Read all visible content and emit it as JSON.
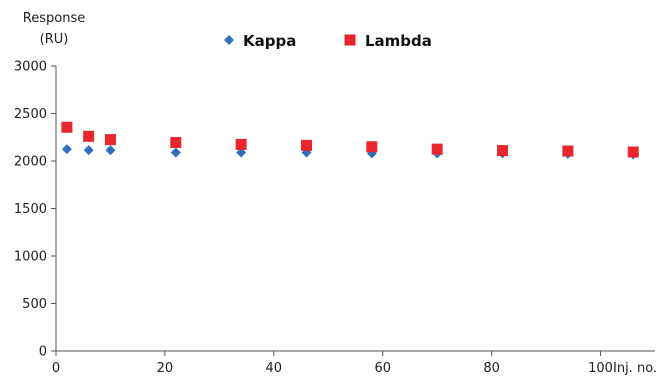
{
  "chart_data": {
    "type": "scatter",
    "title": "",
    "ylabel_line1": "Response",
    "ylabel_line2": "(RU)",
    "xlabel": "Inj. no.",
    "xlim": [
      0,
      110
    ],
    "ylim": [
      0,
      3000
    ],
    "x_ticks": [
      0,
      20,
      40,
      60,
      80,
      100
    ],
    "y_ticks": [
      0,
      500,
      1000,
      1500,
      2000,
      2500,
      3000
    ],
    "grid": false,
    "legend_position": "top-center",
    "series": [
      {
        "name": "Kappa",
        "marker": "diamond",
        "color": "#2e6fbf",
        "x": [
          2,
          6,
          10,
          22,
          34,
          46,
          58,
          70,
          82,
          94,
          106
        ],
        "y": [
          2125,
          2115,
          2115,
          2090,
          2090,
          2090,
          2080,
          2080,
          2080,
          2075,
          2070
        ]
      },
      {
        "name": "Lambda",
        "marker": "square",
        "color": "#e8262b",
        "x": [
          2,
          6,
          10,
          22,
          34,
          46,
          58,
          70,
          82,
          94,
          106
        ],
        "y": [
          2355,
          2260,
          2225,
          2195,
          2175,
          2165,
          2150,
          2125,
          2110,
          2105,
          2095
        ]
      }
    ]
  }
}
